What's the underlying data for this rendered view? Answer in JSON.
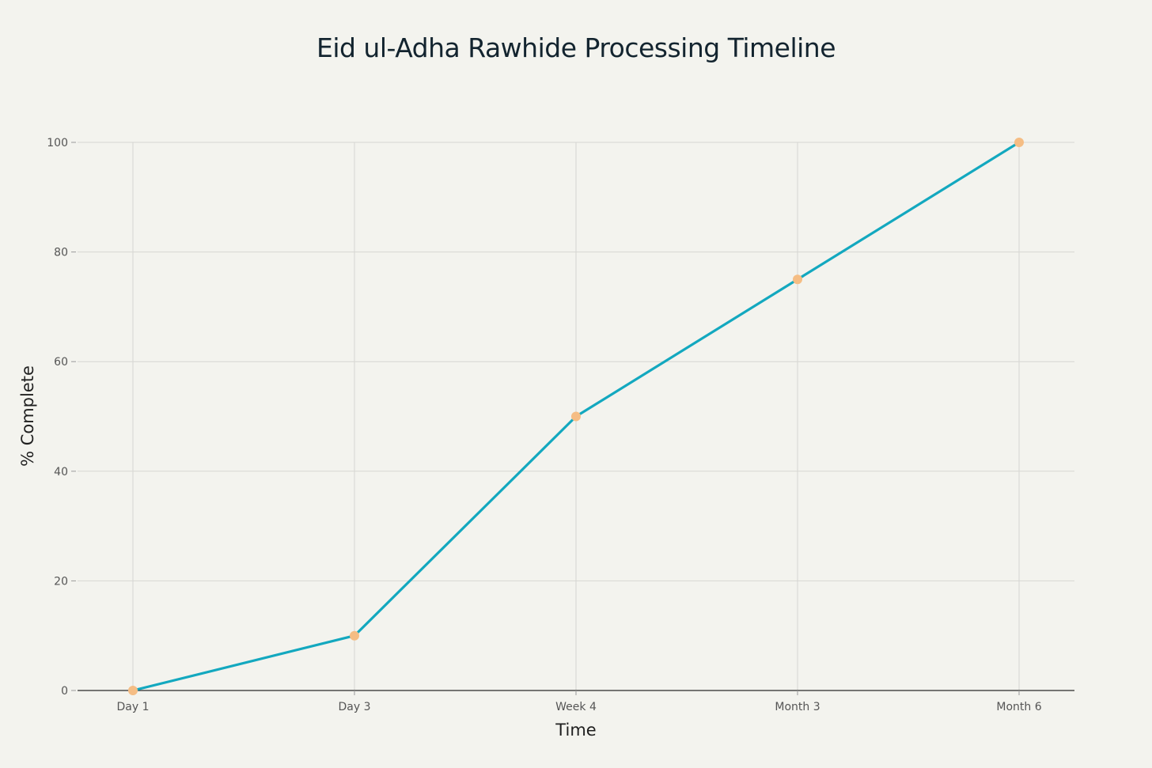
{
  "chart_data": {
    "type": "line",
    "title": "Eid ul-Adha Rawhide Processing Timeline",
    "xlabel": "Time",
    "ylabel": "% Complete",
    "categories": [
      "Day 1",
      "Day 3",
      "Week 4",
      "Month 3",
      "Month 6"
    ],
    "series": [
      {
        "values": [
          0,
          10,
          50,
          75,
          100
        ]
      }
    ],
    "ylim": [
      0,
      100
    ],
    "yticks": [
      0,
      20,
      40,
      60,
      80,
      100
    ],
    "grid": true,
    "legend": "none",
    "colors": {
      "line": "#13a8bf",
      "marker": "#f5bd84",
      "background": "#f3f3ee"
    }
  }
}
